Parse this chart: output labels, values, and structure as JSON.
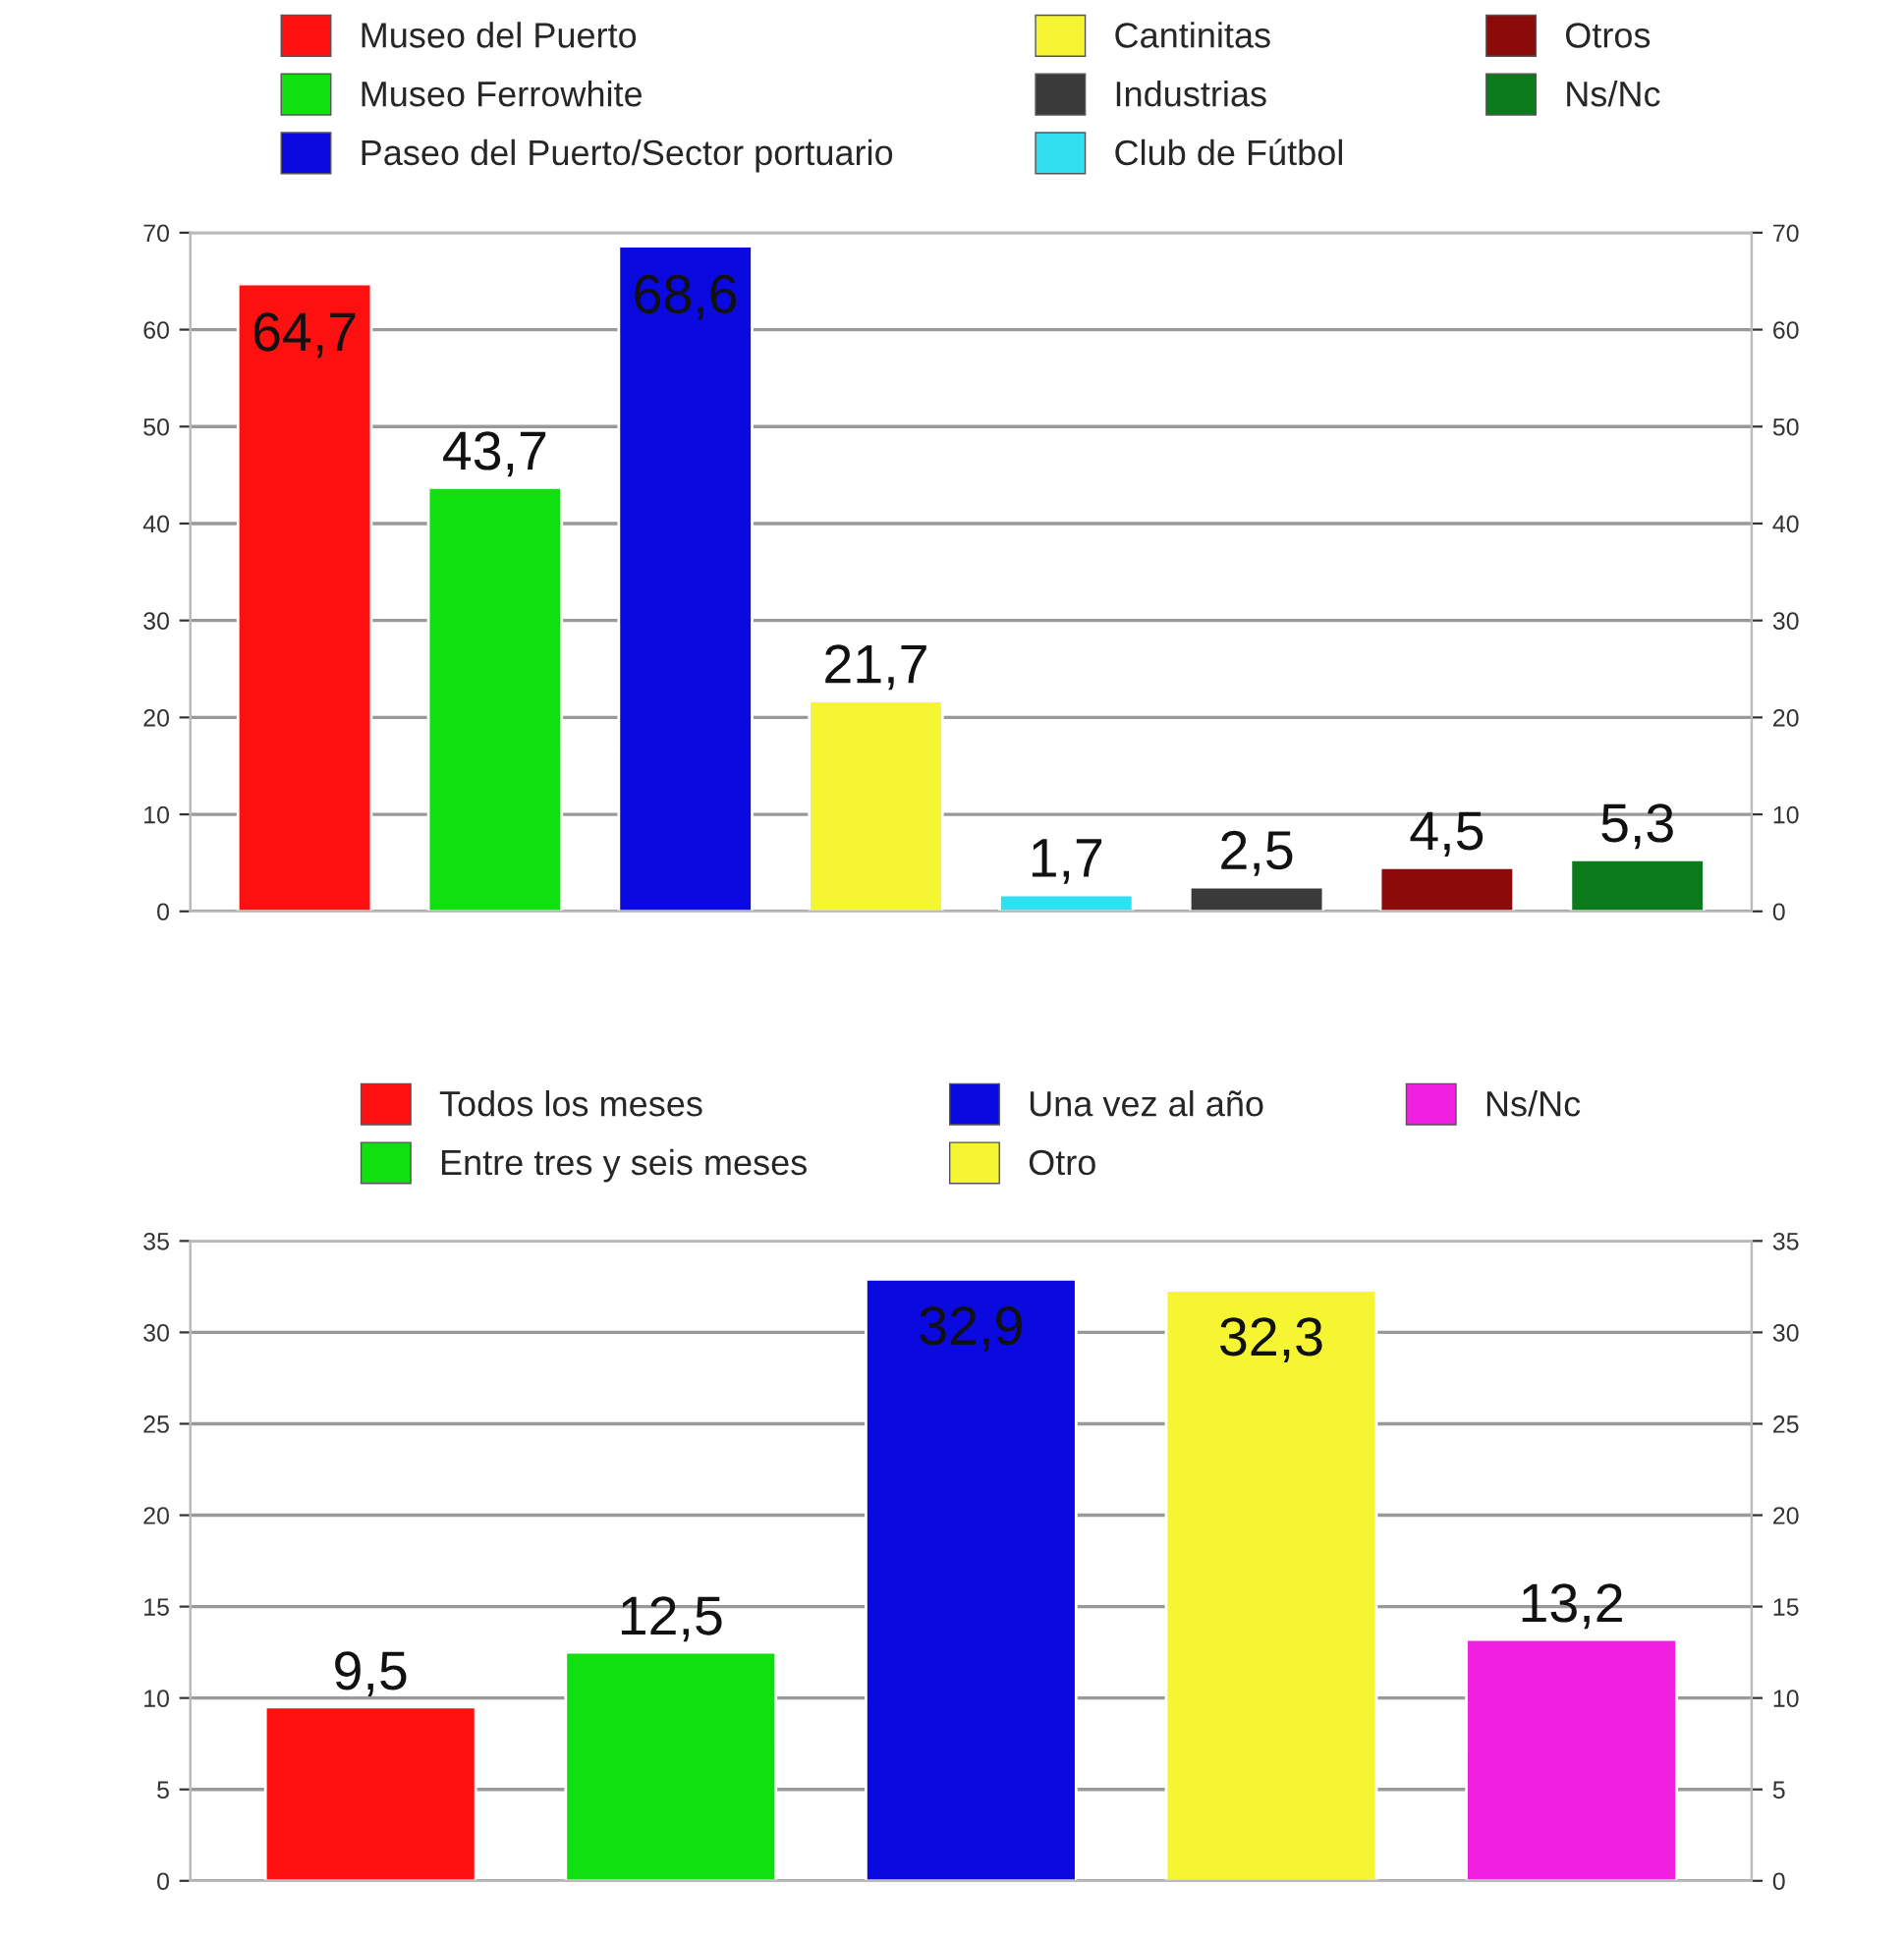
{
  "chart_data": [
    {
      "type": "bar",
      "categories": [
        null,
        null,
        null,
        null,
        null,
        null,
        null,
        null
      ],
      "ylim": [
        0,
        70
      ],
      "yticks": [
        0,
        10,
        20,
        30,
        40,
        50,
        60,
        70
      ],
      "y2lim": [
        0,
        70
      ],
      "y2ticks": [
        0,
        10,
        20,
        30,
        40,
        50,
        60,
        70
      ],
      "grid": "y",
      "legend": "top",
      "series": [
        {
          "name": "Museo del Puerto",
          "color": "#ff1010",
          "values": [
            64.7,
            null,
            null,
            null,
            null,
            null,
            null,
            null
          ],
          "value_labels": [
            "64,7",
            null,
            null,
            null,
            null,
            null,
            null,
            null
          ]
        },
        {
          "name": "Museo Ferrowhite",
          "color": "#10e010",
          "values": [
            null,
            43.7,
            null,
            null,
            null,
            null,
            null,
            null
          ],
          "value_labels": [
            null,
            "43,7",
            null,
            null,
            null,
            null,
            null,
            null
          ]
        },
        {
          "name": "Paseo del Puerto/Sector portuario",
          "color": "#0a0ae0",
          "values": [
            null,
            null,
            68.6,
            null,
            null,
            null,
            null,
            null
          ],
          "value_labels": [
            null,
            null,
            "68,6",
            null,
            null,
            null,
            null,
            null
          ]
        },
        {
          "name": "Cantinitas",
          "color": "#f5f532",
          "values": [
            null,
            null,
            null,
            21.7,
            null,
            null,
            null,
            null
          ],
          "value_labels": [
            null,
            null,
            null,
            "21,7",
            null,
            null,
            null,
            null
          ]
        },
        {
          "name": "Industrias",
          "color": "#3a3a3a",
          "values": [
            null,
            null,
            null,
            null,
            null,
            2.5,
            null,
            null
          ],
          "value_labels": [
            null,
            null,
            null,
            null,
            null,
            "2,5",
            null,
            null
          ]
        },
        {
          "name": "Club de Fútbol",
          "color": "#30e0f0",
          "values": [
            null,
            null,
            null,
            null,
            1.7,
            null,
            null,
            null
          ],
          "value_labels": [
            null,
            null,
            null,
            null,
            "1,7",
            null,
            null,
            null
          ]
        },
        {
          "name": "Otros",
          "color": "#8b0a0a",
          "values": [
            null,
            null,
            null,
            null,
            null,
            null,
            4.5,
            null
          ],
          "value_labels": [
            null,
            null,
            null,
            null,
            null,
            null,
            "4,5",
            null
          ]
        },
        {
          "name": "Ns/Nc",
          "color": "#0a7a1a",
          "values": [
            null,
            null,
            null,
            null,
            null,
            null,
            null,
            5.3
          ],
          "value_labels": [
            null,
            null,
            null,
            null,
            null,
            null,
            null,
            "5,3"
          ]
        }
      ]
    },
    {
      "type": "bar",
      "categories": [
        null,
        null,
        null,
        null,
        null
      ],
      "ylim": [
        0,
        35
      ],
      "yticks": [
        0,
        5,
        10,
        15,
        20,
        25,
        30,
        35
      ],
      "y2lim": [
        0,
        35
      ],
      "y2ticks": [
        0,
        5,
        10,
        15,
        20,
        25,
        30,
        35
      ],
      "grid": "y",
      "legend": "top",
      "series": [
        {
          "name": "Todos los meses",
          "color": "#ff1010",
          "values": [
            9.5,
            null,
            null,
            null,
            null
          ],
          "value_labels": [
            "9,5",
            null,
            null,
            null,
            null
          ]
        },
        {
          "name": "Entre tres y seis meses",
          "color": "#10e010",
          "values": [
            null,
            12.5,
            null,
            null,
            null
          ],
          "value_labels": [
            null,
            "12,5",
            null,
            null,
            null
          ]
        },
        {
          "name": "Una vez al año",
          "color": "#0a0ae0",
          "values": [
            null,
            null,
            32.9,
            null,
            null
          ],
          "value_labels": [
            null,
            null,
            "32,9",
            null,
            null
          ]
        },
        {
          "name": "Otro",
          "color": "#f5f532",
          "values": [
            null,
            null,
            null,
            32.3,
            null
          ],
          "value_labels": [
            null,
            null,
            null,
            "32,3",
            null
          ]
        },
        {
          "name": "Ns/Nc",
          "color": "#f020e0",
          "values": [
            null,
            null,
            null,
            null,
            13.2
          ],
          "value_labels": [
            null,
            null,
            null,
            null,
            "13,2"
          ]
        }
      ]
    }
  ]
}
